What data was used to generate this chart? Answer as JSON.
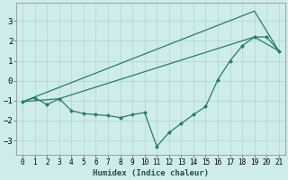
{
  "line1_x": [
    0,
    1,
    2,
    3,
    4,
    5,
    6,
    7,
    8,
    9,
    10,
    11,
    12,
    13,
    14,
    15,
    16,
    17,
    18,
    19,
    20,
    21
  ],
  "line1_y": [
    -1.05,
    -0.85,
    -1.2,
    -0.9,
    -1.5,
    -1.65,
    -1.7,
    -1.75,
    -1.85,
    -1.7,
    -1.6,
    -3.3,
    -2.6,
    -2.15,
    -1.7,
    -1.3,
    0.05,
    1.0,
    1.75,
    2.2,
    2.2,
    1.5
  ],
  "line2_x": [
    0,
    19,
    21
  ],
  "line2_y": [
    -1.05,
    3.5,
    1.5
  ],
  "line3_x": [
    0,
    3,
    19,
    21
  ],
  "line3_y": [
    -1.05,
    -0.9,
    2.2,
    1.5
  ],
  "color": "#2d7a6b",
  "bg_color": "#cdecea",
  "grid_color": "#b8dbd9",
  "xlabel": "Humidex (Indice chaleur)",
  "xlim": [
    -0.5,
    21.5
  ],
  "ylim": [
    -3.7,
    3.9
  ],
  "yticks": [
    -3,
    -2,
    -1,
    0,
    1,
    2,
    3
  ],
  "xticks": [
    0,
    1,
    2,
    3,
    4,
    5,
    6,
    7,
    8,
    9,
    10,
    11,
    12,
    13,
    14,
    15,
    16,
    17,
    18,
    19,
    20,
    21
  ]
}
